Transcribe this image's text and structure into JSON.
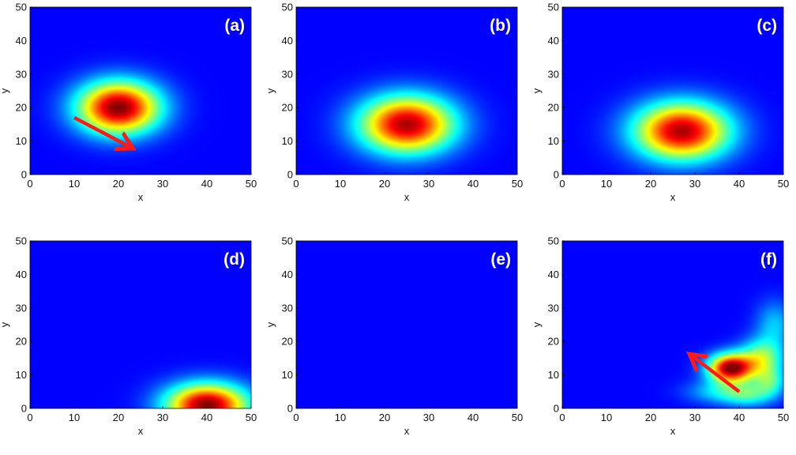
{
  "chart_data": [
    {
      "type": "heatmap",
      "panel_label": "(a)",
      "xlabel": "x",
      "ylabel": "y",
      "xlim": [
        0,
        50
      ],
      "ylim": [
        0,
        50
      ],
      "xticks": [
        0,
        10,
        20,
        30,
        40,
        50
      ],
      "yticks": [
        0,
        10,
        20,
        30,
        40,
        50
      ],
      "colormap": "jet",
      "blobs": [
        {
          "cx": 20,
          "cy": 20,
          "sx": 6.5,
          "sy": 5.5,
          "amp": 1.0
        }
      ],
      "arrow": {
        "from": [
          10,
          17
        ],
        "to": [
          23,
          8
        ],
        "color": "#ff1a1a"
      }
    },
    {
      "type": "heatmap",
      "panel_label": "(b)",
      "xlabel": "x",
      "ylabel": "y",
      "xlim": [
        0,
        50
      ],
      "ylim": [
        0,
        50
      ],
      "xticks": [
        0,
        10,
        20,
        30,
        40,
        50
      ],
      "yticks": [
        0,
        10,
        20,
        30,
        40,
        50
      ],
      "colormap": "jet",
      "blobs": [
        {
          "cx": 25,
          "cy": 15,
          "sx": 7.5,
          "sy": 6.0,
          "amp": 0.95
        }
      ]
    },
    {
      "type": "heatmap",
      "panel_label": "(c)",
      "xlabel": "x",
      "ylabel": "y",
      "xlim": [
        0,
        50
      ],
      "ylim": [
        0,
        50
      ],
      "xticks": [
        0,
        10,
        20,
        30,
        40,
        50
      ],
      "yticks": [
        0,
        10,
        20,
        30,
        40,
        50
      ],
      "colormap": "jet",
      "blobs": [
        {
          "cx": 27,
          "cy": 13,
          "sx": 7.5,
          "sy": 6.0,
          "amp": 0.95
        }
      ]
    },
    {
      "type": "heatmap",
      "panel_label": "(d)",
      "xlabel": "x",
      "ylabel": "y",
      "xlim": [
        0,
        50
      ],
      "ylim": [
        0,
        50
      ],
      "xticks": [
        0,
        10,
        20,
        30,
        40,
        50
      ],
      "yticks": [
        0,
        10,
        20,
        30,
        40,
        50
      ],
      "colormap": "jet",
      "blobs": [
        {
          "cx": 40,
          "cy": 1,
          "sx": 6.5,
          "sy": 4.5,
          "amp": 1.0
        }
      ]
    },
    {
      "type": "heatmap",
      "panel_label": "(e)",
      "xlabel": "x",
      "ylabel": "y",
      "xlim": [
        0,
        50
      ],
      "ylim": [
        0,
        50
      ],
      "xticks": [
        0,
        10,
        20,
        30,
        40,
        50
      ],
      "yticks": [
        0,
        10,
        20,
        30,
        40,
        50
      ],
      "colormap": "jet",
      "blobs": []
    },
    {
      "type": "heatmap",
      "panel_label": "(f)",
      "xlabel": "x",
      "ylabel": "y",
      "xlim": [
        0,
        50
      ],
      "ylim": [
        0,
        50
      ],
      "xticks": [
        0,
        10,
        20,
        30,
        40,
        50
      ],
      "yticks": [
        0,
        10,
        20,
        30,
        40,
        50
      ],
      "colormap": "jet",
      "blobs": [
        {
          "cx": 38,
          "cy": 12,
          "sx": 3.5,
          "sy": 3.0,
          "amp": 1.0
        },
        {
          "cx": 45,
          "cy": 15,
          "sx": 3.5,
          "sy": 4.0,
          "amp": 0.45
        },
        {
          "cx": 48,
          "cy": 25,
          "sx": 3.0,
          "sy": 5.0,
          "amp": 0.22
        },
        {
          "cx": 35,
          "cy": 5,
          "sx": 5.0,
          "sy": 2.5,
          "amp": 0.22
        },
        {
          "cx": 42,
          "cy": 4,
          "sx": 4.0,
          "sy": 2.5,
          "amp": 0.3
        },
        {
          "cx": 47,
          "cy": 8,
          "sx": 2.5,
          "sy": 3.0,
          "amp": 0.3
        }
      ],
      "arrow": {
        "from": [
          40,
          5
        ],
        "to": [
          29,
          16
        ],
        "color": "#ff1a1a"
      }
    }
  ]
}
